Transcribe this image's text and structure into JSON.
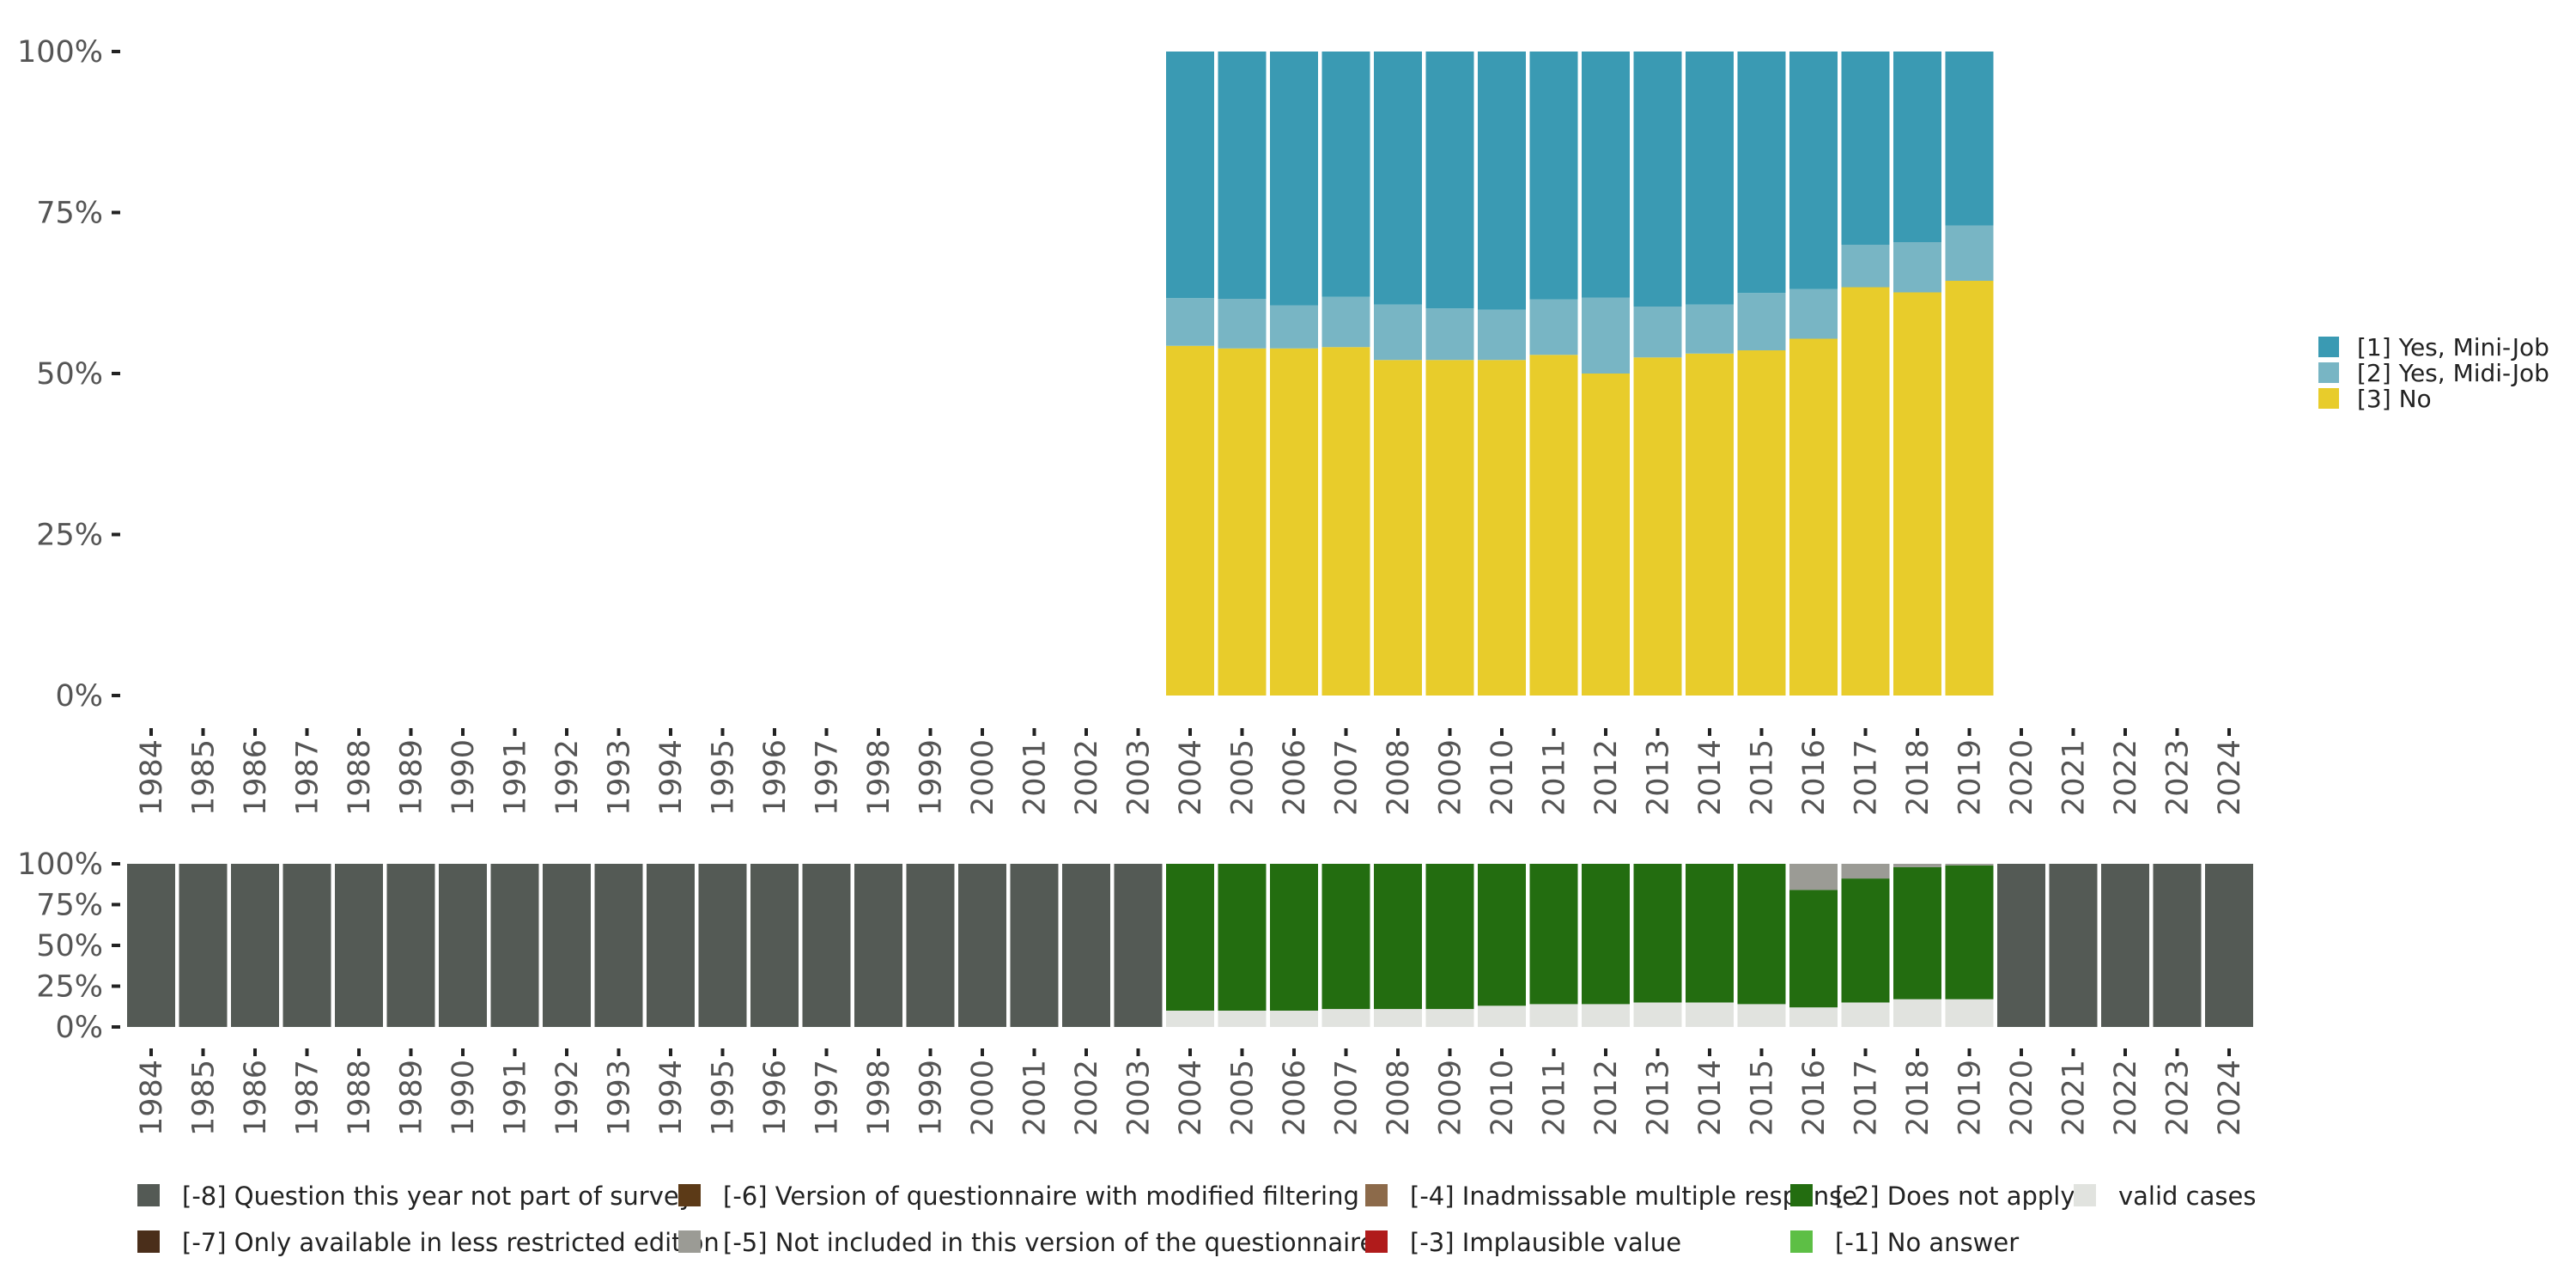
{
  "chart_data": [
    {
      "type": "bar",
      "stacked": true,
      "percent": true,
      "title": "",
      "xlabel": "",
      "ylabel": "",
      "ylim": [
        0,
        100
      ],
      "y_ticks": [
        "0%",
        "25%",
        "50%",
        "75%",
        "100%"
      ],
      "categories": [
        "1984",
        "1985",
        "1986",
        "1987",
        "1988",
        "1989",
        "1990",
        "1991",
        "1992",
        "1993",
        "1994",
        "1995",
        "1996",
        "1997",
        "1998",
        "1999",
        "2000",
        "2001",
        "2002",
        "2003",
        "2004",
        "2005",
        "2006",
        "2007",
        "2008",
        "2009",
        "2010",
        "2011",
        "2012",
        "2013",
        "2014",
        "2015",
        "2016",
        "2017",
        "2018",
        "2019",
        "2020",
        "2021",
        "2022",
        "2023",
        "2024"
      ],
      "legend_position": "right",
      "series": [
        {
          "name": "[3] No",
          "color": "#E8CC2B",
          "values": [
            null,
            null,
            null,
            null,
            null,
            null,
            null,
            null,
            null,
            null,
            null,
            null,
            null,
            null,
            null,
            null,
            null,
            null,
            null,
            null,
            54.3,
            53.9,
            53.9,
            54.1,
            52.1,
            52.1,
            52.1,
            52.9,
            50.0,
            52.5,
            53.1,
            53.6,
            55.4,
            63.4,
            62.6,
            64.4,
            null,
            null,
            null,
            null,
            null
          ]
        },
        {
          "name": "[2] Yes, Midi-Job",
          "color": "#78B5C4",
          "values": [
            null,
            null,
            null,
            null,
            null,
            null,
            null,
            null,
            null,
            null,
            null,
            null,
            null,
            null,
            null,
            null,
            null,
            null,
            null,
            null,
            7.4,
            7.7,
            6.7,
            7.8,
            8.6,
            8.0,
            7.8,
            8.6,
            11.8,
            7.9,
            7.6,
            8.9,
            7.7,
            6.6,
            7.8,
            8.6,
            null,
            null,
            null,
            null,
            null
          ]
        },
        {
          "name": "[1] Yes, Mini-Job",
          "color": "#3A9AB3",
          "values": [
            null,
            null,
            null,
            null,
            null,
            null,
            null,
            null,
            null,
            null,
            null,
            null,
            null,
            null,
            null,
            null,
            null,
            null,
            null,
            null,
            38.3,
            38.4,
            39.4,
            38.1,
            39.3,
            39.9,
            40.1,
            38.5,
            38.2,
            39.6,
            39.3,
            37.5,
            36.9,
            30.0,
            29.6,
            27.0,
            null,
            null,
            null,
            null,
            null
          ]
        }
      ]
    },
    {
      "type": "bar",
      "stacked": true,
      "percent": true,
      "title": "",
      "xlabel": "",
      "ylabel": "",
      "ylim": [
        0,
        100
      ],
      "y_ticks": [
        "0%",
        "25%",
        "50%",
        "75%",
        "100%"
      ],
      "categories": [
        "1984",
        "1985",
        "1986",
        "1987",
        "1988",
        "1989",
        "1990",
        "1991",
        "1992",
        "1993",
        "1994",
        "1995",
        "1996",
        "1997",
        "1998",
        "1999",
        "2000",
        "2001",
        "2002",
        "2003",
        "2004",
        "2005",
        "2006",
        "2007",
        "2008",
        "2009",
        "2010",
        "2011",
        "2012",
        "2013",
        "2014",
        "2015",
        "2016",
        "2017",
        "2018",
        "2019",
        "2020",
        "2021",
        "2022",
        "2023",
        "2024"
      ],
      "legend_position": "bottom",
      "series": [
        {
          "name": "valid cases",
          "color": "#E1E3DF",
          "values": [
            0,
            0,
            0,
            0,
            0,
            0,
            0,
            0,
            0,
            0,
            0,
            0,
            0,
            0,
            0,
            0,
            0,
            0,
            0,
            0,
            10,
            10,
            10,
            11,
            11,
            11,
            13,
            14,
            14,
            15,
            15,
            14,
            12,
            15,
            17,
            17,
            0,
            0,
            0,
            0,
            0
          ]
        },
        {
          "name": "[-2] Does not apply",
          "color": "#236D10",
          "values": [
            0,
            0,
            0,
            0,
            0,
            0,
            0,
            0,
            0,
            0,
            0,
            0,
            0,
            0,
            0,
            0,
            0,
            0,
            0,
            0,
            90,
            90,
            90,
            89,
            89,
            89,
            87,
            86,
            86,
            85,
            85,
            86,
            72,
            76,
            81,
            82,
            0,
            0,
            0,
            0,
            0
          ]
        },
        {
          "name": "[-5] Not included in this version of the questionnaire",
          "color": "#9B9B95",
          "values": [
            0,
            0,
            0,
            0,
            0,
            0,
            0,
            0,
            0,
            0,
            0,
            0,
            0,
            0,
            0,
            0,
            0,
            0,
            0,
            0,
            0,
            0,
            0,
            0,
            0,
            0,
            0,
            0,
            0,
            0,
            0,
            0,
            16,
            9,
            2,
            1,
            0,
            0,
            0,
            0,
            0
          ]
        },
        {
          "name": "[-8] Question this year not part of survey",
          "color": "#545A55",
          "values": [
            100,
            100,
            100,
            100,
            100,
            100,
            100,
            100,
            100,
            100,
            100,
            100,
            100,
            100,
            100,
            100,
            100,
            100,
            100,
            100,
            0,
            0,
            0,
            0,
            0,
            0,
            0,
            0,
            0,
            0,
            0,
            0,
            0,
            0,
            0,
            0,
            100,
            100,
            100,
            100,
            100
          ]
        }
      ],
      "legend_entries": [
        {
          "label": "[-8] Question this year not part of survey",
          "color": "#545A55"
        },
        {
          "label": "[-7] Only available in less restricted edition",
          "color": "#4A2E1A"
        },
        {
          "label": "[-6] Version of questionnaire with modified filtering",
          "color": "#5C3A17"
        },
        {
          "label": "[-5] Not included in this version of the questionnaire",
          "color": "#9B9B95"
        },
        {
          "label": "[-4] Inadmissable multiple response",
          "color": "#8C6A4A"
        },
        {
          "label": "[-3] Implausible value",
          "color": "#B01B1B"
        },
        {
          "label": "[-2] Does not apply",
          "color": "#236D10"
        },
        {
          "label": "[-1] No answer",
          "color": "#5DBF45"
        },
        {
          "label": "valid cases",
          "color": "#E1E3DF"
        }
      ]
    }
  ],
  "legend_top": [
    {
      "label": "[1] Yes, Mini-Job",
      "color": "#3A9AB3"
    },
    {
      "label": "[2] Yes, Midi-Job",
      "color": "#78B5C4"
    },
    {
      "label": "[3] No",
      "color": "#E8CC2B"
    }
  ]
}
